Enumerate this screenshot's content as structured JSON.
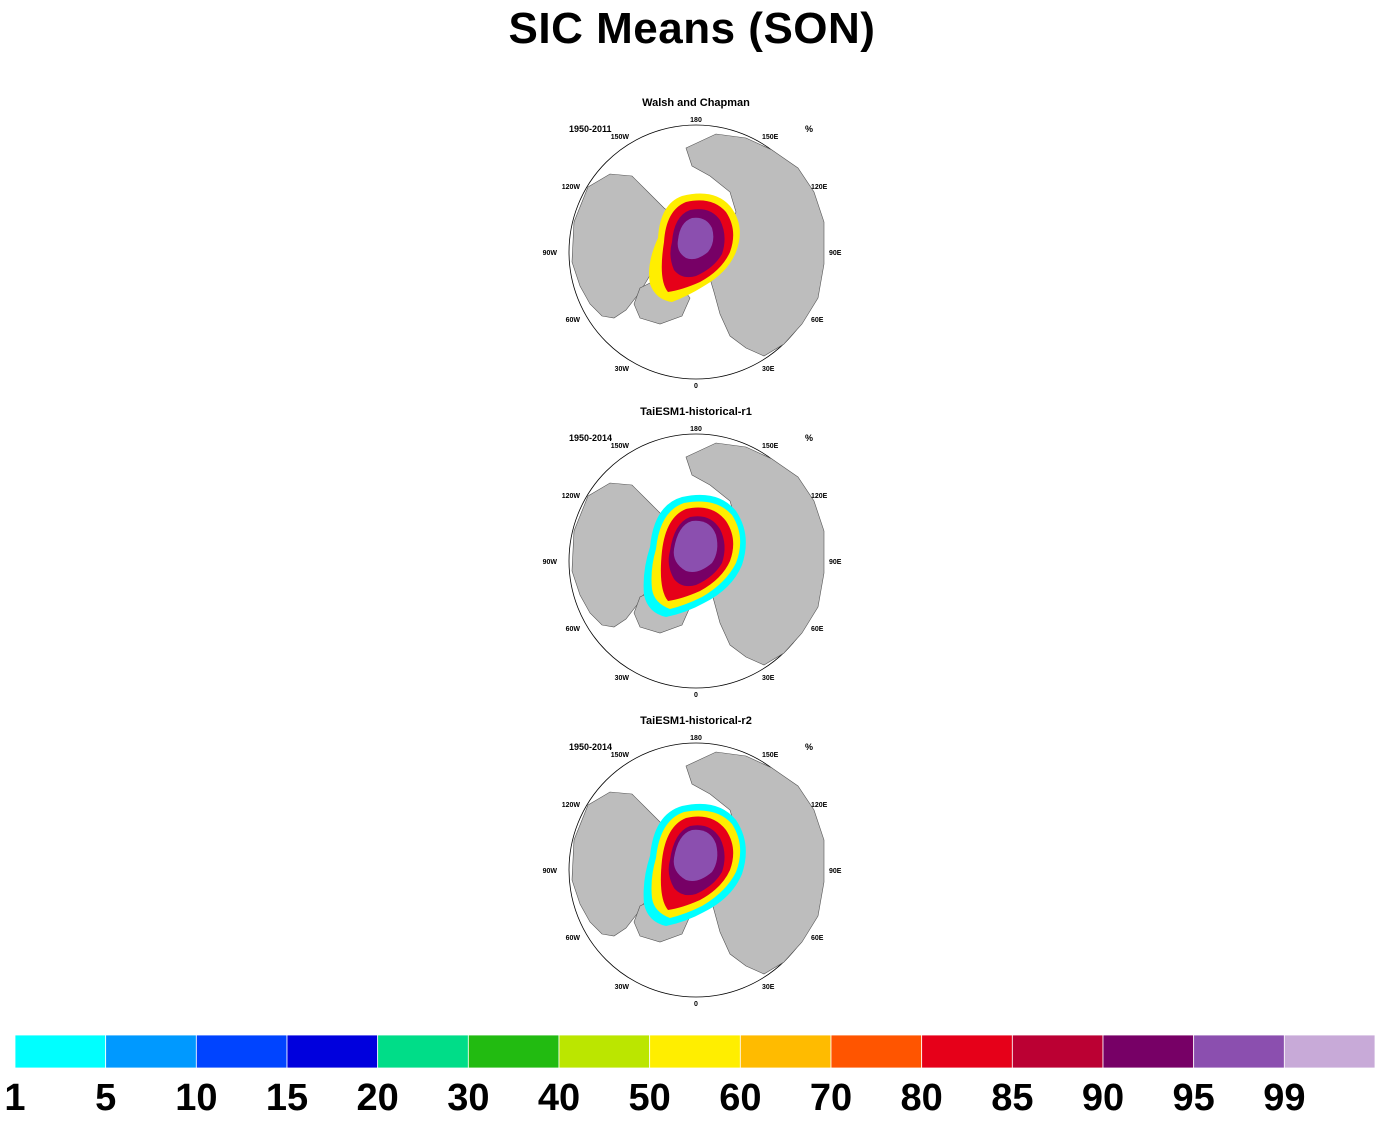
{
  "title": "SIC Means (SON)",
  "panels": [
    {
      "name": "Walsh and Chapman",
      "years": "1950-2011",
      "units": "%"
    },
    {
      "name": "TaiESM1-historical-r1",
      "years": "1950-2014",
      "units": "%"
    },
    {
      "name": "TaiESM1-historical-r2",
      "years": "1950-2014",
      "units": "%"
    }
  ],
  "longitude_labels": {
    "top": "180",
    "bottom": "0",
    "left": "90W",
    "right": "90E",
    "upper_left_outer": "150W",
    "upper_left_inner": "120W",
    "lower_left_inner": "60W",
    "lower_left_outer": "30W",
    "upper_right_outer": "150E",
    "upper_right_inner": "120E",
    "lower_right_inner": "60E",
    "lower_right_outer": "30E"
  },
  "colorbar": {
    "labels": [
      "1",
      "5",
      "10",
      "15",
      "20",
      "30",
      "40",
      "50",
      "60",
      "70",
      "80",
      "85",
      "90",
      "95",
      "99"
    ],
    "colors": [
      "#00ffff",
      "#0099ff",
      "#0044ff",
      "#0000dd",
      "#00dd88",
      "#22bb11",
      "#bbe600",
      "#ffee00",
      "#ffbb00",
      "#ff5500",
      "#e60019",
      "#bb0033",
      "#770066",
      "#8b4faf",
      "#c8aad8"
    ]
  },
  "map_colors": {
    "land": "#bdbdbd",
    "ocean": "#ffffff",
    "coast": "#555555"
  }
}
